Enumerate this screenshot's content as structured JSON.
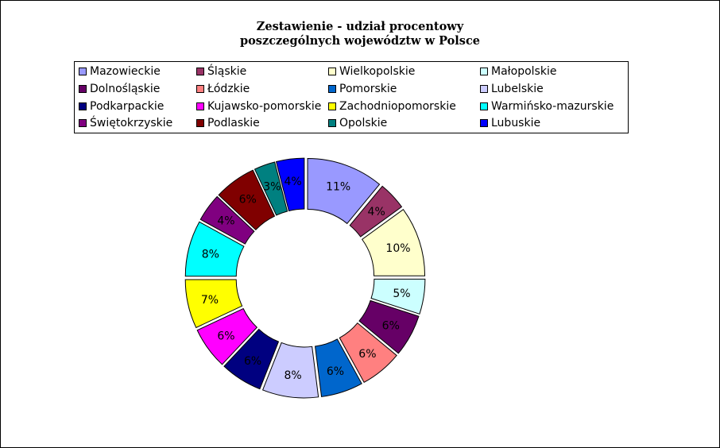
{
  "chart_data": {
    "type": "pie",
    "subtype": "doughnut-exploded",
    "title": [
      "Zestawienie - udział procentowy",
      "poszczególnych województw w Polsce"
    ],
    "legend_position": "top",
    "slices": [
      {
        "name": "Mazowieckie",
        "value": 11,
        "label": "11%",
        "color": "#9999FF"
      },
      {
        "name": "Śląskie",
        "value": 4,
        "label": "4%",
        "color": "#993366"
      },
      {
        "name": "Wielkopolskie",
        "value": 10,
        "label": "10%",
        "color": "#FFFFCC"
      },
      {
        "name": "Małopolskie",
        "value": 5,
        "label": "5%",
        "color": "#CCFFFF"
      },
      {
        "name": "Dolnośląskie",
        "value": 6,
        "label": "6%",
        "color": "#660066"
      },
      {
        "name": "Łódzkie",
        "value": 6,
        "label": "6%",
        "color": "#FF8080"
      },
      {
        "name": "Pomorskie",
        "value": 6,
        "label": "6%",
        "color": "#0066CC"
      },
      {
        "name": "Lubelskie",
        "value": 8,
        "label": "8%",
        "color": "#CCCCFF"
      },
      {
        "name": "Podkarpackie",
        "value": 6,
        "label": "6%",
        "color": "#000080"
      },
      {
        "name": "Kujawsko-pomorskie",
        "value": 6,
        "label": "6%",
        "color": "#FF00FF"
      },
      {
        "name": "Zachodniopomorskie",
        "value": 7,
        "label": "7%",
        "color": "#FFFF00"
      },
      {
        "name": "Warmińsko-mazurskie",
        "value": 8,
        "label": "8%",
        "color": "#00FFFF"
      },
      {
        "name": "Świętokrzyskie",
        "value": 4,
        "label": "4%",
        "color": "#800080"
      },
      {
        "name": "Podlaskie",
        "value": 6,
        "label": "6%",
        "color": "#800000"
      },
      {
        "name": "Opolskie",
        "value": 3,
        "label": "3%",
        "color": "#008080"
      },
      {
        "name": "Lubuskie",
        "value": 4,
        "label": "4%",
        "color": "#0000FF"
      }
    ]
  }
}
